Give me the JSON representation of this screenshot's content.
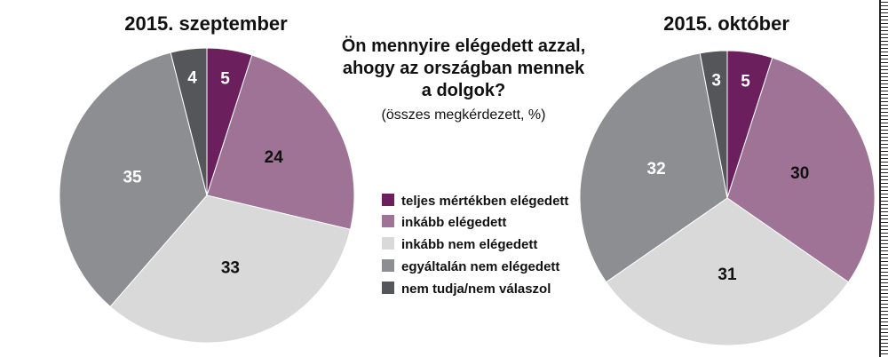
{
  "question": {
    "lines": [
      "Ön mennyire elégedett azzal,",
      "ahogy az országban mennek",
      "a dolgok?"
    ],
    "subtitle": "(összes megkérdezett, %)"
  },
  "colors": {
    "teljes": "#6b1f5c",
    "inkabb": "#9e7396",
    "inkabb_nem": "#d9d9d9",
    "egyaltalan_nem": "#8d8e91",
    "nem_tudja": "#555659"
  },
  "legend": [
    {
      "label": "teljes mértékben elégedett",
      "color": "#6b1f5c"
    },
    {
      "label": "inkább elégedett",
      "color": "#9e7396"
    },
    {
      "label": "inkább nem elégedett",
      "color": "#d9d9d9"
    },
    {
      "label": "egyáltalán nem elégedett",
      "color": "#8d8e91"
    },
    {
      "label": "nem tudja/nem válaszol",
      "color": "#555659"
    }
  ],
  "chart_data": [
    {
      "type": "pie",
      "title": "2015. szeptember",
      "categories": [
        "teljes mértékben elégedett",
        "inkább elégedett",
        "inkább nem elégedett",
        "egyáltalán nem elégedett",
        "nem tudja/nem válaszol"
      ],
      "values": [
        5,
        24,
        33,
        35,
        4
      ],
      "colors": [
        "#6b1f5c",
        "#9e7396",
        "#d9d9d9",
        "#8d8e91",
        "#555659"
      ],
      "label_colors": [
        "#ffffff",
        "#111111",
        "#111111",
        "#ffffff",
        "#ffffff"
      ],
      "start": "12 o'clock, clockwise"
    },
    {
      "type": "pie",
      "title": "2015. október",
      "categories": [
        "teljes mértékben elégedett",
        "inkább elégedett",
        "inkább nem elégedett",
        "egyáltalán nem elégedett",
        "nem tudja/nem válaszol"
      ],
      "values": [
        5,
        30,
        31,
        32,
        3
      ],
      "colors": [
        "#6b1f5c",
        "#9e7396",
        "#d9d9d9",
        "#8d8e91",
        "#555659"
      ],
      "label_colors": [
        "#ffffff",
        "#111111",
        "#111111",
        "#ffffff",
        "#ffffff"
      ],
      "start": "12 o'clock, clockwise"
    }
  ]
}
